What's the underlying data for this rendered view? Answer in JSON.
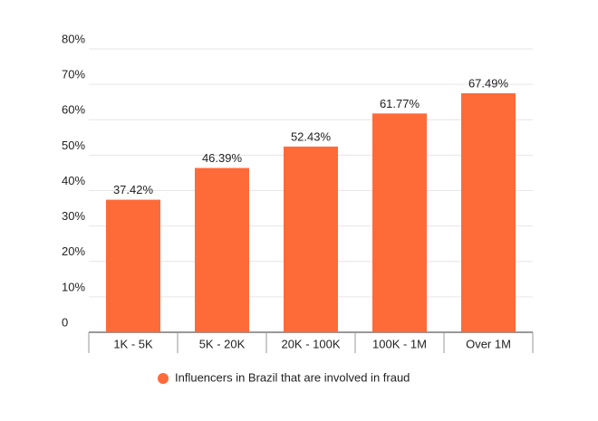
{
  "chart_data": {
    "type": "bar",
    "categories": [
      "1K - 5K",
      "5K - 20K",
      "20K - 100K",
      "100K - 1M",
      "Over 1M"
    ],
    "series": [
      {
        "name": "Influencers in Brazil that are involved in fraud",
        "color": "#ff6a39",
        "values": [
          37.42,
          46.39,
          52.43,
          61.77,
          67.49
        ],
        "value_labels": [
          "37.42%",
          "46.39%",
          "52.43%",
          "61.77%",
          "67.49%"
        ]
      }
    ],
    "ylim": [
      0,
      80
    ],
    "yticks": [
      0,
      {
        "value": 10,
        "label": "10%"
      },
      {
        "value": 20,
        "label": "20%"
      },
      {
        "value": 30,
        "label": "30%"
      },
      {
        "value": 40,
        "label": "40%"
      },
      {
        "value": 50,
        "label": "50%"
      },
      {
        "value": 60,
        "label": "60%"
      },
      {
        "value": 70,
        "label": "70%"
      },
      {
        "value": 80,
        "label": "80%"
      }
    ],
    "grid": true,
    "legend": "bottom"
  }
}
